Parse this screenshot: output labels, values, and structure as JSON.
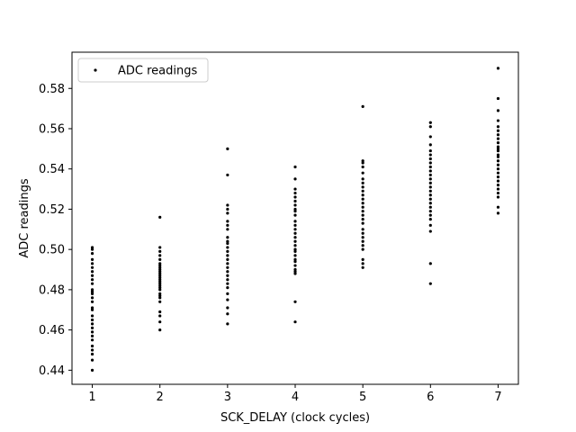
{
  "chart_data": {
    "type": "scatter",
    "xlabel": "SCK_DELAY (clock cycles)",
    "ylabel": "ADC readings",
    "xlim": [
      0.7,
      7.3
    ],
    "ylim": [
      0.433,
      0.598
    ],
    "xticks": [
      1,
      2,
      3,
      4,
      5,
      6,
      7
    ],
    "yticks": [
      0.44,
      0.46,
      0.48,
      0.5,
      0.52,
      0.54,
      0.56,
      0.58
    ],
    "ytick_labels": [
      "0.44",
      "0.46",
      "0.48",
      "0.50",
      "0.52",
      "0.54",
      "0.56",
      "0.58"
    ],
    "grid": false,
    "legend_position": "upper-left",
    "marker_color": "#000000",
    "series": [
      {
        "name": "ADC readings",
        "points": [
          [
            1,
            0.44
          ],
          [
            1,
            0.445
          ],
          [
            1,
            0.448
          ],
          [
            1,
            0.45
          ],
          [
            1,
            0.452
          ],
          [
            1,
            0.455
          ],
          [
            1,
            0.457
          ],
          [
            1,
            0.459
          ],
          [
            1,
            0.461
          ],
          [
            1,
            0.463
          ],
          [
            1,
            0.465
          ],
          [
            1,
            0.467
          ],
          [
            1,
            0.47
          ],
          [
            1,
            0.471
          ],
          [
            1,
            0.474
          ],
          [
            1,
            0.476
          ],
          [
            1,
            0.478
          ],
          [
            1,
            0.479
          ],
          [
            1,
            0.48
          ],
          [
            1,
            0.483
          ],
          [
            1,
            0.485
          ],
          [
            1,
            0.487
          ],
          [
            1,
            0.489
          ],
          [
            1,
            0.491
          ],
          [
            1,
            0.493
          ],
          [
            1,
            0.495
          ],
          [
            1,
            0.498
          ],
          [
            1,
            0.5
          ],
          [
            1,
            0.501
          ],
          [
            2,
            0.46
          ],
          [
            2,
            0.464
          ],
          [
            2,
            0.467
          ],
          [
            2,
            0.469
          ],
          [
            2,
            0.474
          ],
          [
            2,
            0.476
          ],
          [
            2,
            0.477
          ],
          [
            2,
            0.478
          ],
          [
            2,
            0.48
          ],
          [
            2,
            0.481
          ],
          [
            2,
            0.482
          ],
          [
            2,
            0.483
          ],
          [
            2,
            0.484
          ],
          [
            2,
            0.485
          ],
          [
            2,
            0.486
          ],
          [
            2,
            0.487
          ],
          [
            2,
            0.488
          ],
          [
            2,
            0.489
          ],
          [
            2,
            0.49
          ],
          [
            2,
            0.491
          ],
          [
            2,
            0.492
          ],
          [
            2,
            0.493
          ],
          [
            2,
            0.495
          ],
          [
            2,
            0.497
          ],
          [
            2,
            0.499
          ],
          [
            2,
            0.501
          ],
          [
            2,
            0.516
          ],
          [
            3,
            0.463
          ],
          [
            3,
            0.468
          ],
          [
            3,
            0.471
          ],
          [
            3,
            0.475
          ],
          [
            3,
            0.478
          ],
          [
            3,
            0.481
          ],
          [
            3,
            0.483
          ],
          [
            3,
            0.485
          ],
          [
            3,
            0.487
          ],
          [
            3,
            0.489
          ],
          [
            3,
            0.491
          ],
          [
            3,
            0.493
          ],
          [
            3,
            0.495
          ],
          [
            3,
            0.497
          ],
          [
            3,
            0.499
          ],
          [
            3,
            0.501
          ],
          [
            3,
            0.503
          ],
          [
            3,
            0.504
          ],
          [
            3,
            0.506
          ],
          [
            3,
            0.51
          ],
          [
            3,
            0.512
          ],
          [
            3,
            0.514
          ],
          [
            3,
            0.518
          ],
          [
            3,
            0.52
          ],
          [
            3,
            0.522
          ],
          [
            3,
            0.537
          ],
          [
            3,
            0.55
          ],
          [
            4,
            0.464
          ],
          [
            4,
            0.474
          ],
          [
            4,
            0.488
          ],
          [
            4,
            0.489
          ],
          [
            4,
            0.49
          ],
          [
            4,
            0.492
          ],
          [
            4,
            0.494
          ],
          [
            4,
            0.495
          ],
          [
            4,
            0.497
          ],
          [
            4,
            0.499
          ],
          [
            4,
            0.5
          ],
          [
            4,
            0.502
          ],
          [
            4,
            0.504
          ],
          [
            4,
            0.506
          ],
          [
            4,
            0.508
          ],
          [
            4,
            0.51
          ],
          [
            4,
            0.512
          ],
          [
            4,
            0.514
          ],
          [
            4,
            0.517
          ],
          [
            4,
            0.519
          ],
          [
            4,
            0.52
          ],
          [
            4,
            0.522
          ],
          [
            4,
            0.524
          ],
          [
            4,
            0.526
          ],
          [
            4,
            0.528
          ],
          [
            4,
            0.53
          ],
          [
            4,
            0.535
          ],
          [
            4,
            0.541
          ],
          [
            5,
            0.491
          ],
          [
            5,
            0.493
          ],
          [
            5,
            0.495
          ],
          [
            5,
            0.5
          ],
          [
            5,
            0.502
          ],
          [
            5,
            0.504
          ],
          [
            5,
            0.506
          ],
          [
            5,
            0.508
          ],
          [
            5,
            0.51
          ],
          [
            5,
            0.513
          ],
          [
            5,
            0.515
          ],
          [
            5,
            0.517
          ],
          [
            5,
            0.519
          ],
          [
            5,
            0.521
          ],
          [
            5,
            0.523
          ],
          [
            5,
            0.525
          ],
          [
            5,
            0.527
          ],
          [
            5,
            0.529
          ],
          [
            5,
            0.531
          ],
          [
            5,
            0.533
          ],
          [
            5,
            0.535
          ],
          [
            5,
            0.538
          ],
          [
            5,
            0.541
          ],
          [
            5,
            0.543
          ],
          [
            5,
            0.544
          ],
          [
            5,
            0.571
          ],
          [
            6,
            0.483
          ],
          [
            6,
            0.493
          ],
          [
            6,
            0.509
          ],
          [
            6,
            0.512
          ],
          [
            6,
            0.515
          ],
          [
            6,
            0.517
          ],
          [
            6,
            0.519
          ],
          [
            6,
            0.521
          ],
          [
            6,
            0.523
          ],
          [
            6,
            0.525
          ],
          [
            6,
            0.527
          ],
          [
            6,
            0.529
          ],
          [
            6,
            0.531
          ],
          [
            6,
            0.533
          ],
          [
            6,
            0.535
          ],
          [
            6,
            0.537
          ],
          [
            6,
            0.539
          ],
          [
            6,
            0.541
          ],
          [
            6,
            0.543
          ],
          [
            6,
            0.545
          ],
          [
            6,
            0.547
          ],
          [
            6,
            0.549
          ],
          [
            6,
            0.552
          ],
          [
            6,
            0.556
          ],
          [
            6,
            0.561
          ],
          [
            6,
            0.563
          ],
          [
            7,
            0.518
          ],
          [
            7,
            0.521
          ],
          [
            7,
            0.526
          ],
          [
            7,
            0.528
          ],
          [
            7,
            0.53
          ],
          [
            7,
            0.532
          ],
          [
            7,
            0.534
          ],
          [
            7,
            0.536
          ],
          [
            7,
            0.538
          ],
          [
            7,
            0.54
          ],
          [
            7,
            0.542
          ],
          [
            7,
            0.544
          ],
          [
            7,
            0.546
          ],
          [
            7,
            0.547
          ],
          [
            7,
            0.549
          ],
          [
            7,
            0.55
          ],
          [
            7,
            0.551
          ],
          [
            7,
            0.553
          ],
          [
            7,
            0.555
          ],
          [
            7,
            0.557
          ],
          [
            7,
            0.559
          ],
          [
            7,
            0.561
          ],
          [
            7,
            0.564
          ],
          [
            7,
            0.569
          ],
          [
            7,
            0.575
          ],
          [
            7,
            0.59
          ]
        ]
      }
    ]
  }
}
